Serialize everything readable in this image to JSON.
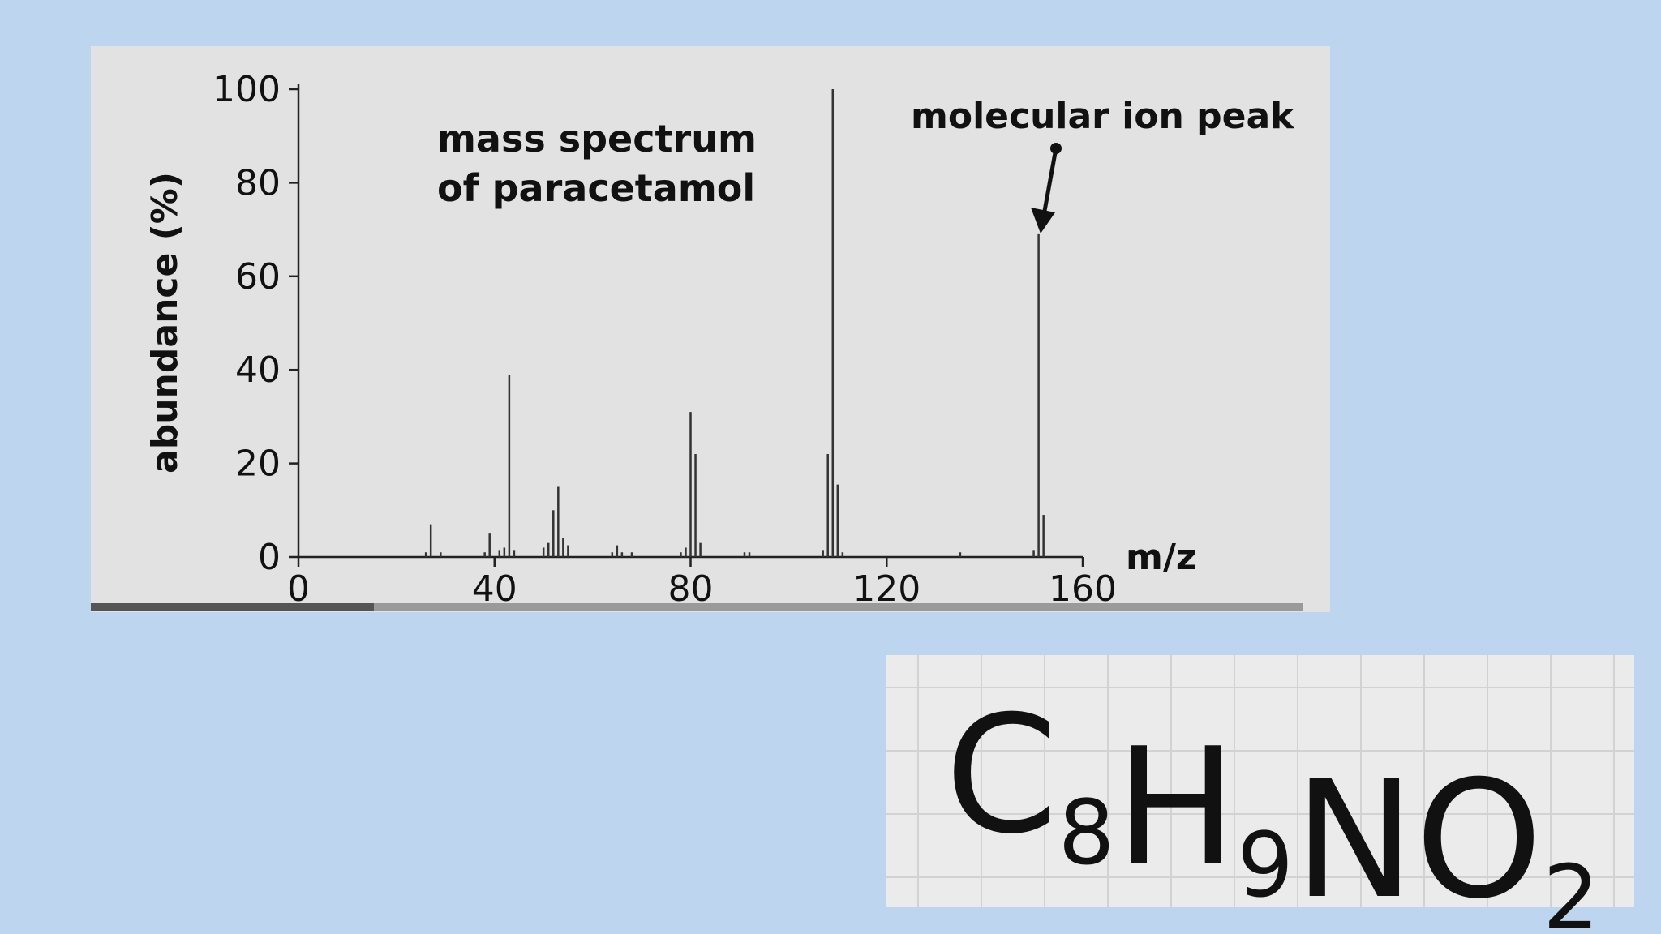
{
  "chart_data": {
    "type": "bar",
    "title": [
      "mass spectrum",
      "of paracetamol"
    ],
    "annotation": "molecular ion peak",
    "xlabel": "m/z",
    "ylabel": "abundance (%)",
    "x": [
      26,
      27,
      29,
      38,
      39,
      41,
      42,
      43,
      44,
      50,
      51,
      52,
      53,
      54,
      55,
      64,
      65,
      66,
      68,
      78,
      79,
      80,
      81,
      82,
      91,
      92,
      107,
      108,
      109,
      110,
      111,
      135,
      150,
      151,
      152
    ],
    "values": [
      1,
      7,
      1,
      1,
      5,
      1.5,
      2,
      39,
      1.5,
      2,
      3,
      10,
      15,
      4,
      2.5,
      1,
      2.5,
      1,
      1,
      1,
      2,
      31,
      22,
      3,
      1,
      1,
      1.5,
      22,
      100,
      15.5,
      1,
      1,
      1.5,
      69,
      9
    ],
    "color": "#333333",
    "xlim": [
      0,
      160
    ],
    "xticks": [
      0,
      40,
      80,
      120,
      160
    ],
    "ylim": [
      0,
      100
    ],
    "yticks": [
      0,
      20,
      40,
      60,
      80,
      100
    ]
  },
  "formula": [
    {
      "element": "C",
      "count": 8
    },
    {
      "element": "H",
      "count": 9
    },
    {
      "element": "N"
    },
    {
      "element": "O",
      "count": 2
    }
  ]
}
